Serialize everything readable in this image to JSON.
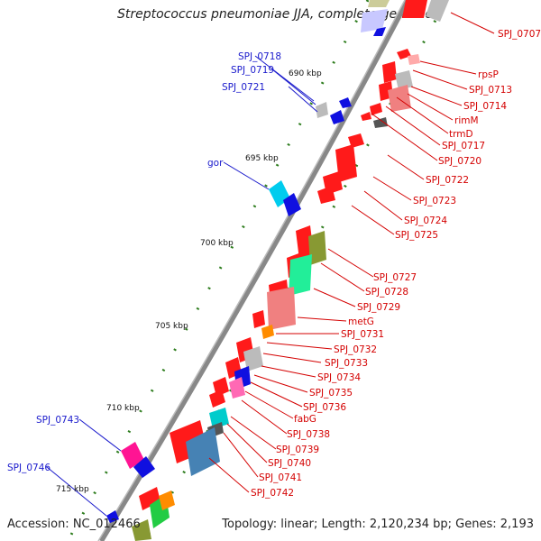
{
  "title": "Streptococcus pneumoniae JJA, complete genome",
  "footer": {
    "accession": "Accession: NC_012466",
    "summary": "Topology: linear; Length: 2,120,234 bp; Genes: 2,193"
  },
  "scale_ticks": [
    {
      "label": "690 kbp"
    },
    {
      "label": "695 kbp"
    },
    {
      "label": "700 kbp"
    },
    {
      "label": "705 kbp"
    },
    {
      "label": "710 kbp"
    },
    {
      "label": "715 kbp"
    }
  ],
  "left_labels": [
    {
      "text": "SPJ_0718"
    },
    {
      "text": "SPJ_0719"
    },
    {
      "text": "SPJ_0721"
    },
    {
      "text": "gor"
    },
    {
      "text": "SPJ_0743"
    },
    {
      "text": "SPJ_0746"
    }
  ],
  "right_labels": [
    {
      "text": "SPJ_0707"
    },
    {
      "text": "rpsP"
    },
    {
      "text": "SPJ_0713"
    },
    {
      "text": "SPJ_0714"
    },
    {
      "text": "rimM"
    },
    {
      "text": "trmD"
    },
    {
      "text": "SPJ_0717"
    },
    {
      "text": "SPJ_0720"
    },
    {
      "text": "SPJ_0722"
    },
    {
      "text": "SPJ_0723"
    },
    {
      "text": "SPJ_0724"
    },
    {
      "text": "SPJ_0725"
    },
    {
      "text": "SPJ_0727"
    },
    {
      "text": "SPJ_0728"
    },
    {
      "text": "SPJ_0729"
    },
    {
      "text": "metG"
    },
    {
      "text": "SPJ_0731"
    },
    {
      "text": "SPJ_0732"
    },
    {
      "text": "SPJ_0733"
    },
    {
      "text": "SPJ_0734"
    },
    {
      "text": "SPJ_0735"
    },
    {
      "text": "SPJ_0736"
    },
    {
      "text": "fabG"
    },
    {
      "text": "SPJ_0738"
    },
    {
      "text": "SPJ_0739"
    },
    {
      "text": "SPJ_0740"
    },
    {
      "text": "SPJ_0741"
    },
    {
      "text": "SPJ_0742"
    }
  ],
  "colors": {
    "backbone": "#777777",
    "gene_red": "#ff1a1a",
    "label_red": "#d40000",
    "label_blue": "#1a1acc",
    "tick_green": "#2e7d1e"
  }
}
